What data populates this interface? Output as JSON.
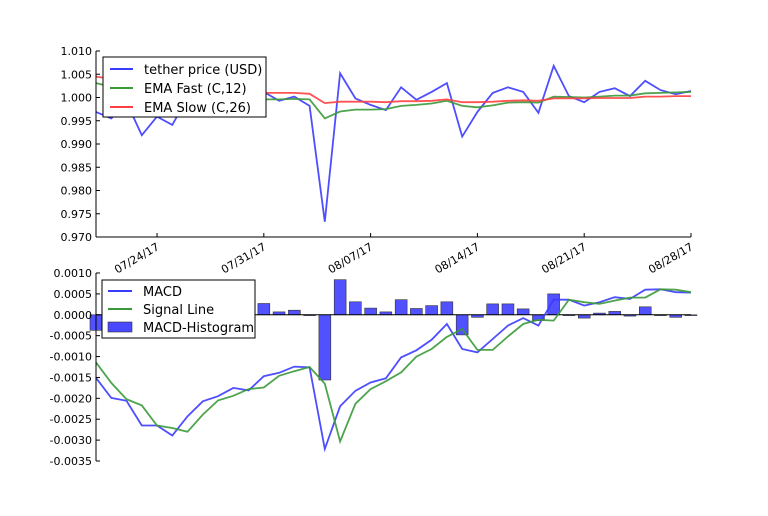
{
  "chart_data": [
    {
      "type": "line",
      "title": "",
      "xlabel": "",
      "ylabel": "",
      "x_start": "07/20/17",
      "x_end": "08/28/17",
      "xtick_labels": [
        "07/24/17",
        "07/31/17",
        "08/07/17",
        "08/14/17",
        "08/21/17",
        "08/28/17"
      ],
      "xtick_day_index": [
        4,
        11,
        18,
        25,
        32,
        39
      ],
      "ylim": [
        0.97,
        1.01
      ],
      "ytick_labels": [
        "1.010",
        "1.005",
        "1.000",
        "0.995",
        "0.990",
        "0.985",
        "0.980",
        "0.975",
        "0.970"
      ],
      "ytick_values": [
        1.01,
        1.005,
        1.0,
        0.995,
        0.99,
        0.985,
        0.98,
        0.975,
        0.97
      ],
      "legend_position": "upper-left",
      "series": [
        {
          "name": "tether price (USD)",
          "color": "#3b3bff",
          "values": [
            0.9969,
            0.9955,
            0.999,
            0.9919,
            0.9959,
            0.9941,
            1.0,
            1.001,
            1.0005,
            1.0,
            1.001,
            1.0012,
            0.9993,
            1.0002,
            0.9982,
            0.9733,
            1.0052,
            0.9998,
            0.9984,
            0.9973,
            1.0022,
            0.9995,
            1.0012,
            1.0031,
            0.9916,
            0.9969,
            1.001,
            1.0022,
            1.0012,
            0.9967,
            1.0068,
            1.0003,
            0.999,
            1.0012,
            1.002,
            1.0003,
            1.0036,
            1.0016,
            1.0007,
            1.0014
          ]
        },
        {
          "name": "EMA Fast (C,12)",
          "color": "#3a9a3a",
          "values": [
            1.0031,
            1.0023,
            1.0017,
            1.0008,
            1.0004,
            0.9998,
            0.9997,
            0.9996,
            0.9996,
            0.9996,
            0.9996,
            0.9996,
            0.9996,
            0.9997,
            0.9996,
            0.9955,
            0.997,
            0.9974,
            0.9974,
            0.9975,
            0.9982,
            0.9984,
            0.9987,
            0.9993,
            0.9982,
            0.9979,
            0.9983,
            0.9989,
            0.999,
            0.9989,
            1.0002,
            1.0001,
            1.0,
            1.0002,
            1.0004,
            1.0004,
            1.0009,
            1.001,
            1.0011,
            1.0012
          ]
        },
        {
          "name": "EMA Slow (C,26)",
          "color": "#ff4040",
          "values": [
            1.0045,
            1.004,
            1.0035,
            1.003,
            1.0026,
            1.0022,
            1.0019,
            1.0016,
            1.0014,
            1.0012,
            1.0011,
            1.001,
            1.001,
            1.001,
            1.0008,
            0.9988,
            0.9991,
            0.9991,
            0.9991,
            0.999,
            0.9992,
            0.9992,
            0.9993,
            0.9996,
            0.999,
            0.999,
            0.9991,
            0.9993,
            0.9994,
            0.9993,
            0.9998,
            0.9998,
            0.9998,
            0.9999,
            0.9999,
            0.9999,
            1.0002,
            1.0002,
            1.0003,
            1.0003
          ]
        }
      ]
    },
    {
      "type": "line",
      "title": "",
      "xlabel": "",
      "ylabel": "",
      "ylim": [
        -0.0035,
        0.001
      ],
      "ytick_labels": [
        "0.0010",
        "0.0005",
        "0.0000",
        "-0.0005",
        "-0.0010",
        "-0.0015",
        "-0.0020",
        "-0.0025",
        "-0.0030",
        "-0.0035"
      ],
      "ytick_values": [
        0.001,
        0.0005,
        0.0,
        -0.0005,
        -0.001,
        -0.0015,
        -0.002,
        -0.0025,
        -0.003,
        -0.0035
      ],
      "legend_position": "upper-left",
      "series": [
        {
          "name": "MACD",
          "color": "#3b3bff",
          "values": [
            -0.00151,
            -0.00199,
            -0.00206,
            -0.00265,
            -0.00265,
            -0.00289,
            -0.00243,
            -0.00207,
            -0.00195,
            -0.00175,
            -0.00181,
            -0.00147,
            -0.00139,
            -0.00124,
            -0.00126,
            -0.00321,
            -0.00219,
            -0.00182,
            -0.00162,
            -0.00152,
            -0.00102,
            -0.00085,
            -0.0006,
            -0.00022,
            -0.00082,
            -0.0009,
            -0.00058,
            -0.00026,
            -8e-05,
            -0.00026,
            0.00036,
            0.00036,
            0.00022,
            0.0003,
            0.00042,
            0.00038,
            0.0006,
            0.00061,
            0.00054,
            0.00053
          ]
        },
        {
          "name": "Signal Line",
          "color": "#3a9a3a",
          "values": [
            -0.00114,
            -0.00163,
            -0.00202,
            -0.00217,
            -0.00265,
            -0.00271,
            -0.0028,
            -0.00239,
            -0.00205,
            -0.00194,
            -0.00178,
            -0.00174,
            -0.00146,
            -0.00135,
            -0.00125,
            -0.00165,
            -0.00303,
            -0.00213,
            -0.00178,
            -0.00159,
            -0.00138,
            -0.001,
            -0.00082,
            -0.00053,
            -0.00034,
            -0.00084,
            -0.00084,
            -0.00052,
            -0.00022,
            -0.00012,
            -0.00014,
            0.00036,
            0.0003,
            0.00026,
            0.00034,
            0.00041,
            0.00041,
            0.00061,
            0.0006,
            0.00054
          ]
        },
        {
          "name": "MACD-Histogram",
          "color": "#4848ff",
          "kind": "bar",
          "values": [
            -0.00037,
            -0.00036,
            -4e-05,
            -0.00048,
            0.0,
            -0.00018,
            0.00037,
            0.00032,
            0.0001,
            0.00019,
            -3e-05,
            0.00027,
            7e-05,
            0.00011,
            -1e-05,
            -0.00156,
            0.00084,
            0.00031,
            0.00016,
            7e-05,
            0.00036,
            0.00015,
            0.00022,
            0.00031,
            -0.00048,
            -6e-05,
            0.00026,
            0.00026,
            0.00014,
            -0.00014,
            0.0005,
            0.0,
            -8e-05,
            4e-05,
            8e-05,
            -3e-05,
            0.00019,
            0.0,
            -6e-05,
            -1e-05
          ]
        }
      ]
    }
  ]
}
